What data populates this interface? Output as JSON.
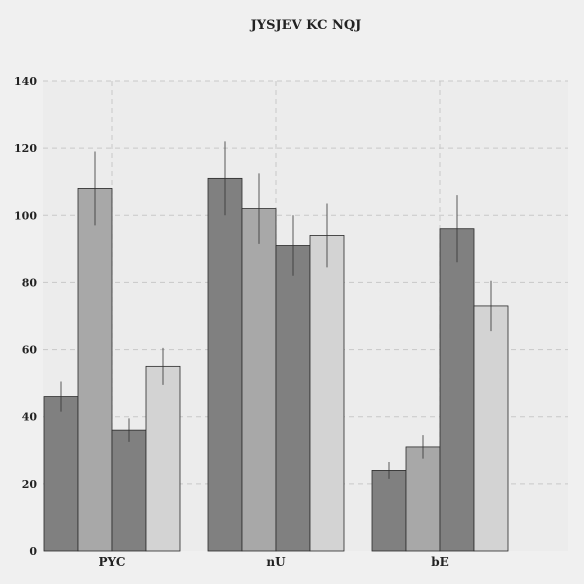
{
  "chart_data": {
    "type": "bar",
    "title": "JYSJEV KC NQJ",
    "xlabel": "",
    "ylabel": "",
    "categories": [
      "PYC",
      "nU",
      "bE"
    ],
    "ylim": [
      0,
      140
    ],
    "yticks": [
      0,
      20,
      40,
      60,
      80,
      100,
      120,
      140
    ],
    "grid": true,
    "series": [
      {
        "color": "#808080",
        "values": [
          46,
          111,
          24
        ],
        "errors": [
          4.5,
          11,
          2.5
        ]
      },
      {
        "color": "#a8a8a8",
        "values": [
          108,
          102,
          31
        ],
        "errors": [
          11,
          10.5,
          3.5
        ]
      },
      {
        "color": "#808080",
        "values": [
          36,
          91,
          96
        ],
        "errors": [
          3.5,
          9,
          10
        ]
      },
      {
        "color": "#d3d3d3",
        "values": [
          55,
          94,
          73
        ],
        "errors": [
          5.5,
          9.5,
          7.5
        ]
      }
    ]
  }
}
